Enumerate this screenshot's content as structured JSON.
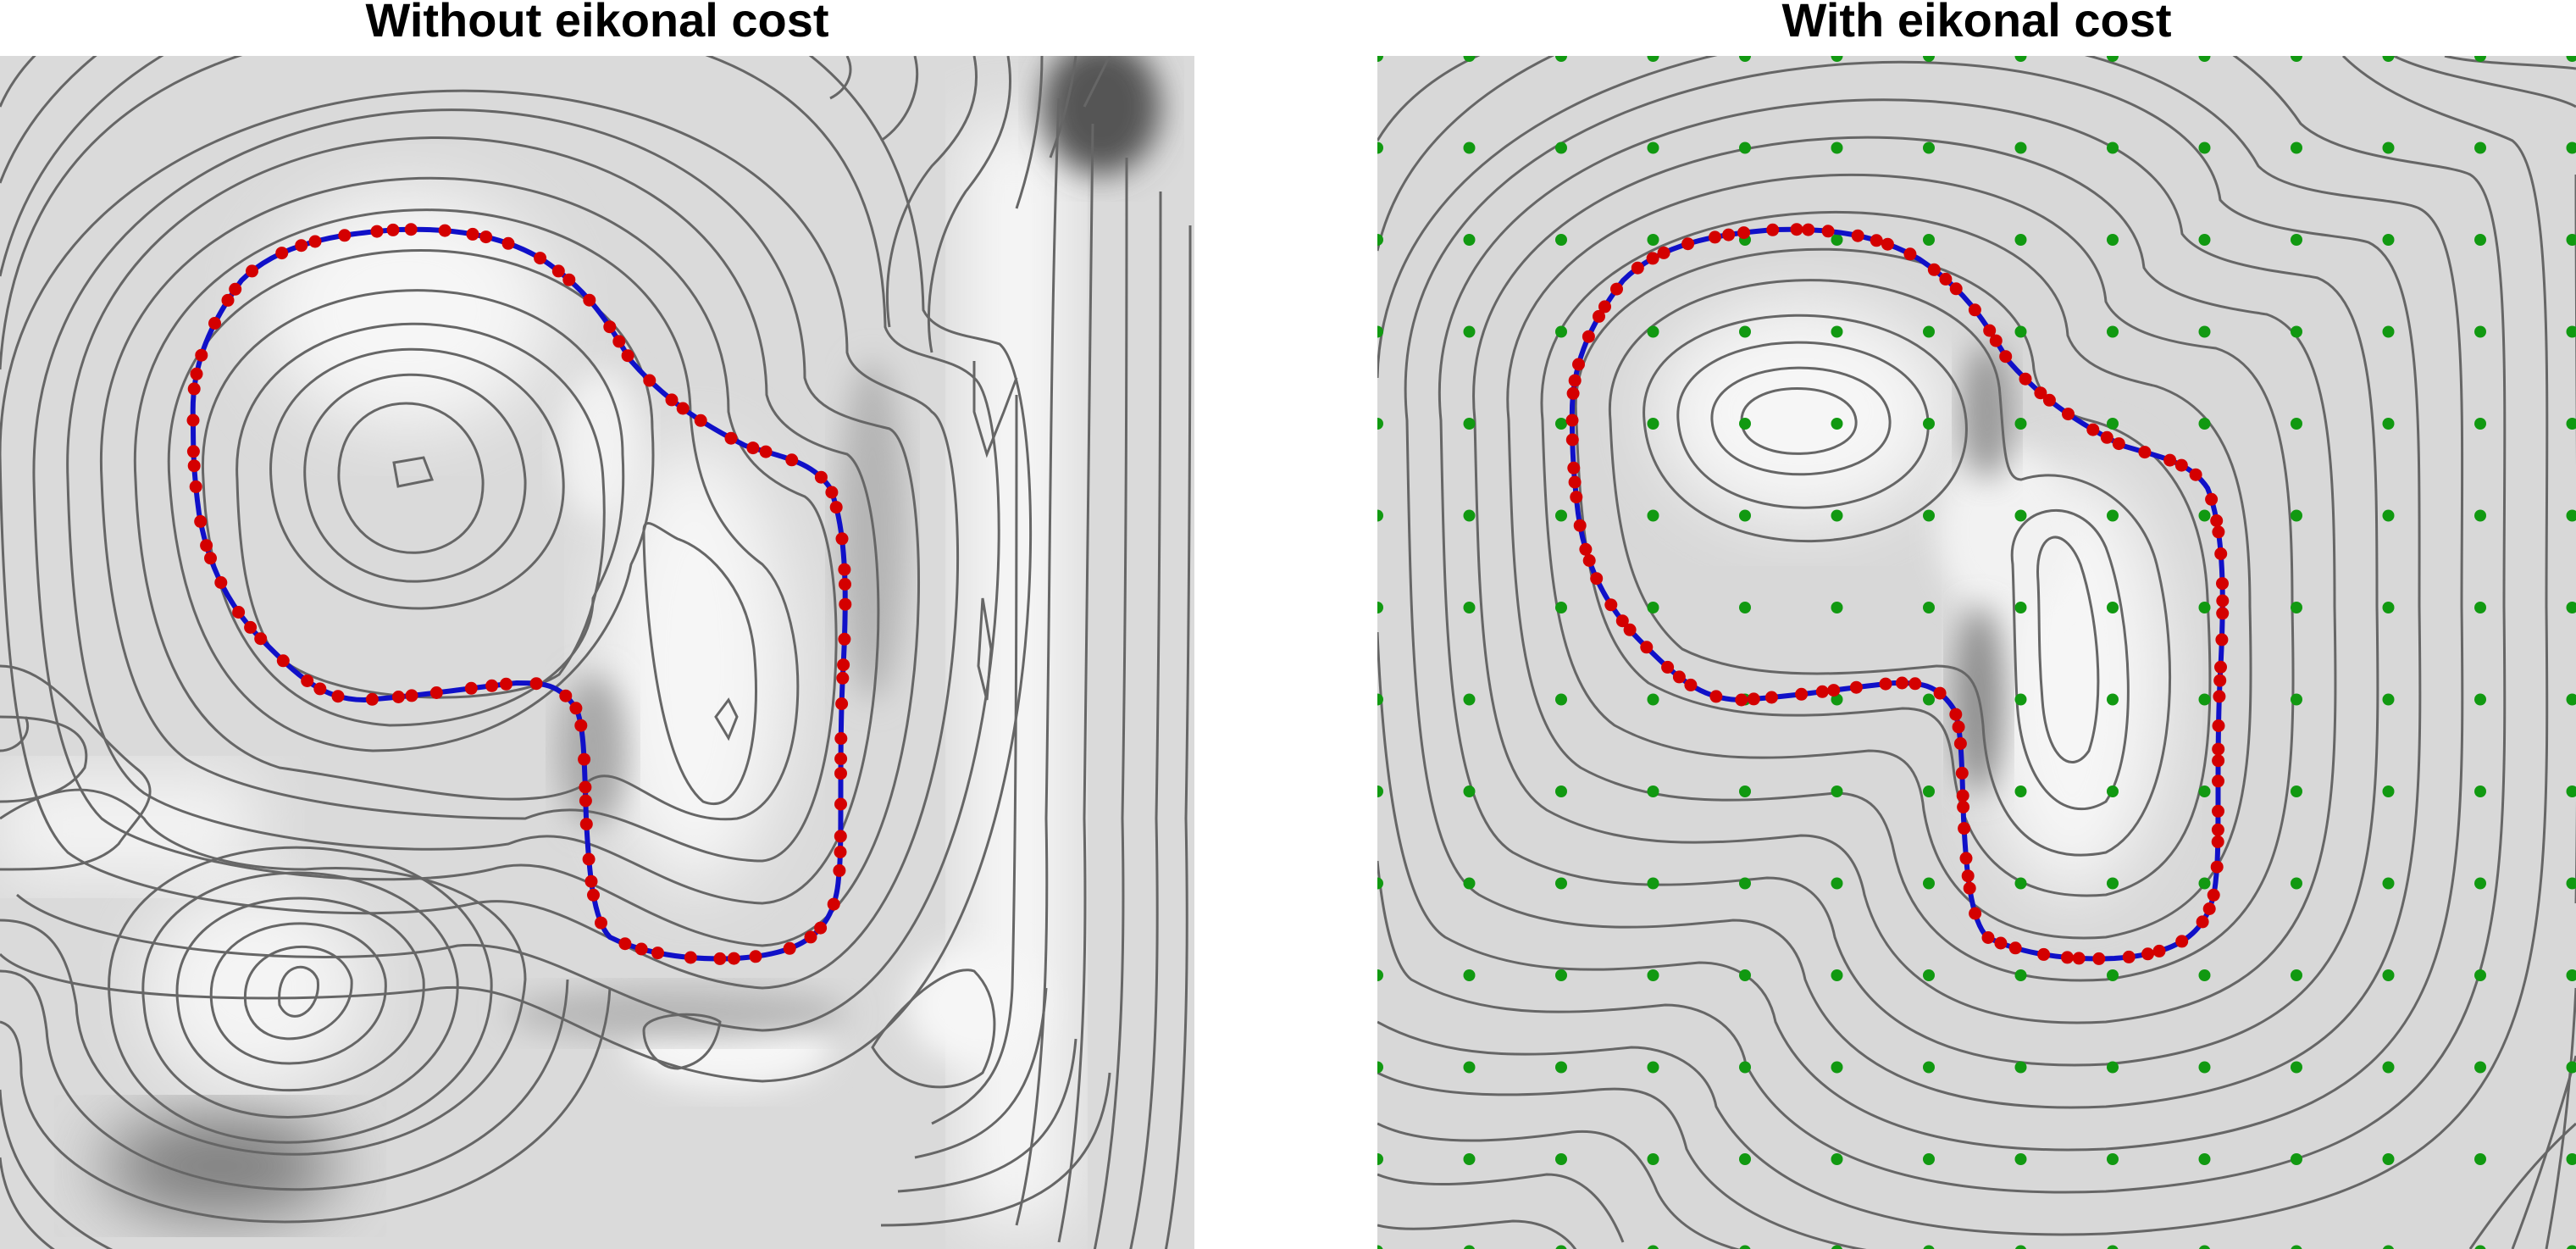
{
  "panels": [
    {
      "title": "Without eikonal cost"
    },
    {
      "title": "With eikonal cost"
    }
  ],
  "colors": {
    "curve": "#1010c8",
    "surface_points": "#d40000",
    "grid_points": "#119911",
    "contour_lines": "#666666",
    "background_light": "#ffffff",
    "background_dark": "#555555"
  }
}
